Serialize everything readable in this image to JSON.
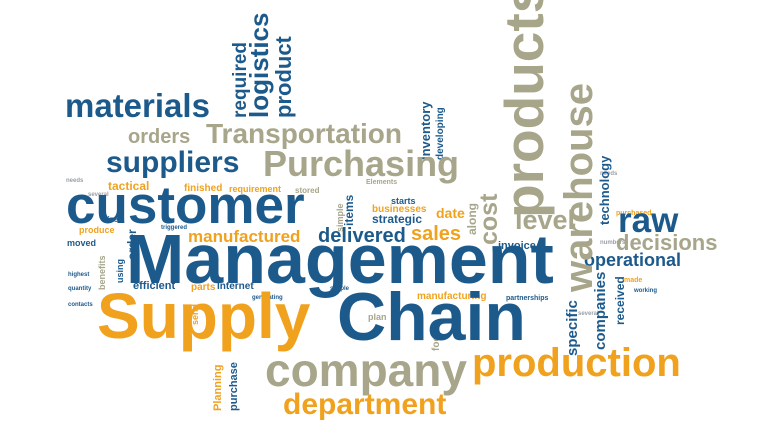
{
  "palette": {
    "navy": "#1d5a8c",
    "orange": "#f0a21f",
    "olive": "#a7a58a",
    "background": "#ffffff"
  },
  "words": {
    "management": "Management",
    "supply": "Supply",
    "chain": "Chain",
    "customer": "customer",
    "company": "company",
    "production": "production",
    "products": "products",
    "warehouse": "warehouse",
    "purchasing": "Purchasing",
    "department": "department",
    "transportation": "Transportation",
    "materials": "materials",
    "suppliers": "suppliers",
    "logistics": "logistics",
    "level": "level",
    "raw": "raw",
    "decisions": "decisions",
    "orders": "orders",
    "delivered": "delivered",
    "manufactured": "manufactured",
    "sales": "sales",
    "product": "product",
    "required": "required",
    "operational": "operational",
    "inventory": "Inventory",
    "developing": "developing",
    "tactical": "tactical",
    "strategic": "strategic",
    "cost": "cost",
    "date": "date",
    "along": "along",
    "efficient": "efficient",
    "parts": "parts",
    "internet": "Internet",
    "manufacturing": "manufacturing",
    "planning": "Planning",
    "purchase": "purchase",
    "invoice": "invoice",
    "technology": "technology",
    "companies": "companies",
    "received": "received",
    "specific": "specific",
    "businesses": "businesses",
    "plan": "plan",
    "finished": "finished",
    "requirement": "requirement",
    "moved": "moved",
    "produce": "produce",
    "size": "size",
    "order": "order",
    "items": "items",
    "starts": "starts",
    "stored": "stored",
    "simple": "simple",
    "elements": "Elements",
    "focus": "focus",
    "partnerships": "partnerships",
    "purchased": "purchased",
    "made": "made",
    "working": "working",
    "using": "using",
    "benefits": "benefits",
    "quantity": "quantity",
    "highest": "highest",
    "contacts": "contacts",
    "generating": "generating",
    "triggered": "triggered",
    "send": "send",
    "needs": "needs",
    "several": "several",
    "numbers": "numbers"
  }
}
